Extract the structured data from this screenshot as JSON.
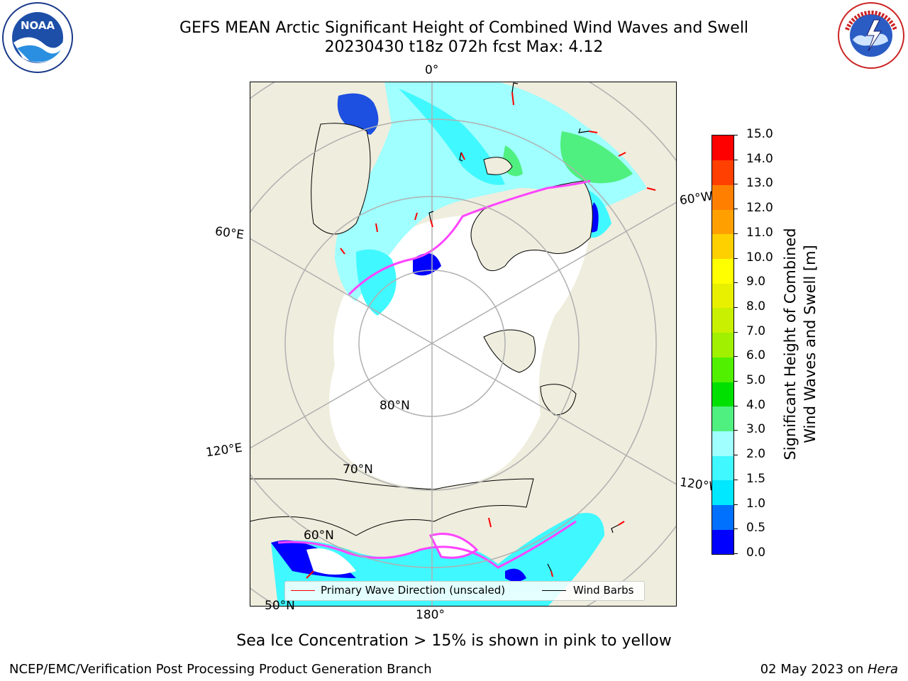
{
  "header": {
    "title": "GEFS MEAN Arctic Significant Height of Combined Wind Waves and Swell",
    "subtitle": "20230430 t18z 072h fcst   Max: 4.12"
  },
  "logos": {
    "left": "NOAA",
    "right": "NATIONAL WEATHER SERVICE"
  },
  "map": {
    "projection": "north-polar-stereographic",
    "meridian_labels": [
      "0°",
      "60°W",
      "120°W",
      "180°",
      "120°E",
      "60°E"
    ],
    "parallel_labels": [
      "80°N",
      "70°N",
      "60°N",
      "50°N"
    ],
    "colors": {
      "land": "#efeddd",
      "ocean_ice_free": "#ffffff",
      "coastline": "#000000",
      "gridline": "#b0b0b0",
      "ice_edge": "#ff44ff",
      "wave_arrow": "#ff0000"
    }
  },
  "legend": {
    "primary_wave_label": "Primary Wave Direction (unscaled)",
    "wind_barbs_label": "Wind Barbs",
    "primary_wave_color": "#ff0000",
    "wind_barbs_color": "#000000"
  },
  "colorbar": {
    "label_line1": "Significant Height of Combined",
    "label_line2": "Wind Waves and Swell [m]",
    "ticks": [
      "0.0",
      "0.5",
      "1.0",
      "1.5",
      "2.0",
      "3.0",
      "4.0",
      "5.0",
      "6.0",
      "7.0",
      "8.0",
      "9.0",
      "10.0",
      "11.0",
      "12.0",
      "13.0",
      "14.0",
      "15.0"
    ],
    "colors": [
      "#0000ff",
      "#0070ff",
      "#00e8ff",
      "#40f8ff",
      "#a0ffff",
      "#50f080",
      "#00e000",
      "#50f000",
      "#a0f000",
      "#c8f000",
      "#e8f000",
      "#ffff00",
      "#ffd000",
      "#ffa000",
      "#ff8000",
      "#ff4000",
      "#ff0000"
    ]
  },
  "chart_data": {
    "type": "map",
    "title": "GEFS MEAN Arctic Significant Height of Combined Wind Waves and Swell",
    "run": "20230430 t18z 072h fcst",
    "max_value": 4.12,
    "units": "m",
    "colorbar_range": [
      0,
      15
    ]
  },
  "notes": {
    "sea_ice": "Sea Ice Concentration > 15% is shown in pink to yellow"
  },
  "footer": {
    "left": "NCEP/EMC/Verification Post Processing Product Generation Branch",
    "right_prefix": "02 May 2023 on ",
    "right_machine": "Hera"
  }
}
